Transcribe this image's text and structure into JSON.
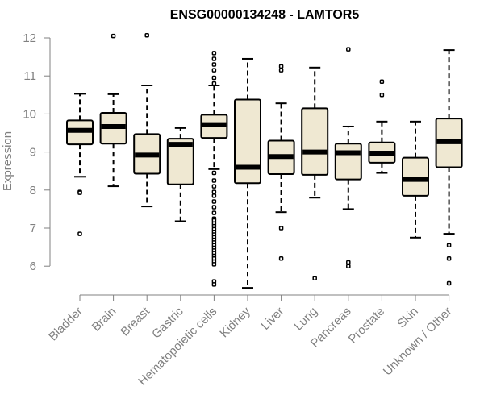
{
  "chart_data": {
    "type": "boxplot",
    "title": "ENSG00000134248 - LAMTOR5",
    "xlabel": "",
    "ylabel": "Expression",
    "ylim": [
      5.4,
      12.2
    ],
    "yticks": [
      6,
      7,
      8,
      9,
      10,
      11,
      12
    ],
    "colors": {
      "box_fill": "#efe8d2",
      "stroke": "#000000",
      "axis": "#808080"
    },
    "groups": [
      {
        "label": "Bladder",
        "whisker_low": 8.35,
        "q1": 9.2,
        "median": 9.57,
        "q3": 9.83,
        "whisker_high": 10.53,
        "outliers": [
          7.95,
          7.93,
          6.85
        ]
      },
      {
        "label": "Brain",
        "whisker_low": 8.1,
        "q1": 9.22,
        "median": 9.67,
        "q3": 10.03,
        "whisker_high": 10.52,
        "outliers": [
          12.05
        ]
      },
      {
        "label": "Breast",
        "whisker_low": 7.57,
        "q1": 8.43,
        "median": 8.92,
        "q3": 9.47,
        "whisker_high": 10.75,
        "outliers": [
          12.07
        ]
      },
      {
        "label": "Gastric",
        "whisker_low": 7.18,
        "q1": 8.15,
        "median": 9.2,
        "q3": 9.35,
        "whisker_high": 9.63,
        "outliers": []
      },
      {
        "label": "Hematopoietic cells",
        "whisker_low": 8.55,
        "q1": 9.37,
        "median": 9.72,
        "q3": 9.98,
        "whisker_high": 10.75,
        "outliers": [
          11.6,
          11.45,
          11.3,
          11.15,
          10.95,
          10.8,
          8.45,
          8.25,
          8.1,
          7.95,
          7.85,
          7.7,
          7.55,
          7.4,
          7.25,
          7.2,
          7.12,
          7.05,
          6.97,
          6.9,
          6.83,
          6.76,
          6.69,
          6.62,
          6.55,
          6.48,
          6.41,
          6.34,
          6.27,
          6.2,
          6.12,
          6.05,
          5.6,
          5.52
        ]
      },
      {
        "label": "Kidney",
        "whisker_low": 5.43,
        "q1": 8.18,
        "median": 8.6,
        "q3": 10.38,
        "whisker_high": 11.45,
        "outliers": []
      },
      {
        "label": "Liver",
        "whisker_low": 7.42,
        "q1": 8.42,
        "median": 8.88,
        "q3": 9.3,
        "whisker_high": 10.28,
        "outliers": [
          11.25,
          11.15,
          7.0,
          6.2
        ]
      },
      {
        "label": "Lung",
        "whisker_low": 7.8,
        "q1": 8.4,
        "median": 9.0,
        "q3": 10.15,
        "whisker_high": 11.22,
        "outliers": [
          5.68
        ]
      },
      {
        "label": "Pancreas",
        "whisker_low": 7.5,
        "q1": 8.28,
        "median": 8.98,
        "q3": 9.22,
        "whisker_high": 9.67,
        "outliers": [
          11.7,
          6.1,
          6.0
        ]
      },
      {
        "label": "Prostate",
        "whisker_low": 8.45,
        "q1": 8.72,
        "median": 8.97,
        "q3": 9.25,
        "whisker_high": 9.8,
        "outliers": [
          10.85,
          10.5
        ]
      },
      {
        "label": "Skin",
        "whisker_low": 6.75,
        "q1": 7.85,
        "median": 8.28,
        "q3": 8.85,
        "whisker_high": 9.8,
        "outliers": []
      },
      {
        "label": "Unknown / Other",
        "whisker_low": 6.85,
        "q1": 8.6,
        "median": 9.27,
        "q3": 9.88,
        "whisker_high": 11.68,
        "outliers": [
          6.55,
          6.2,
          5.55
        ]
      }
    ]
  }
}
